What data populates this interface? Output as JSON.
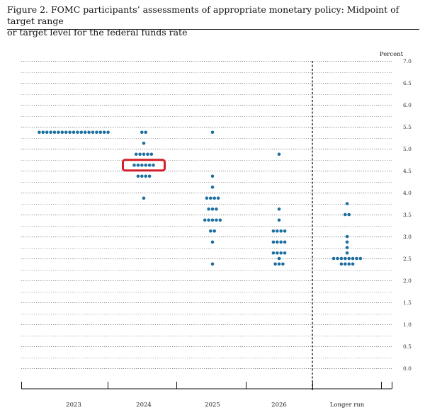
{
  "caption": {
    "line1": "Figure 2.  FOMC participants’ assessments of appropriate monetary policy:  Midpoint of target range",
    "line2": "or target level for the federal funds rate"
  },
  "colors": {
    "dot": "#1d6fa0",
    "highlight": "#d0202a"
  },
  "chart_data": {
    "type": "scatter",
    "ylabel": "Percent",
    "ylim": [
      0.0,
      7.0
    ],
    "yticks": [
      "0.0",
      "0.5",
      "1.0",
      "1.5",
      "2.0",
      "2.5",
      "3.0",
      "3.5",
      "4.0",
      "4.5",
      "5.0",
      "5.5",
      "6.0",
      "6.5",
      "7.0"
    ],
    "categories": [
      "2023",
      "2024",
      "2025",
      "2026",
      "Longer run"
    ],
    "dot_counts": [
      [
        [
          5.375,
          19
        ]
      ],
      [
        [
          5.375,
          2
        ],
        [
          5.125,
          1
        ],
        [
          4.875,
          5
        ],
        [
          4.625,
          6
        ],
        [
          4.375,
          4
        ],
        [
          3.875,
          1
        ]
      ],
      [
        [
          5.375,
          1
        ],
        [
          4.375,
          1
        ],
        [
          4.125,
          1
        ],
        [
          3.875,
          4
        ],
        [
          3.625,
          3
        ],
        [
          3.375,
          5
        ],
        [
          3.125,
          2
        ],
        [
          2.875,
          1
        ],
        [
          2.375,
          1
        ]
      ],
      [
        [
          4.875,
          1
        ],
        [
          3.625,
          1
        ],
        [
          3.375,
          1
        ],
        [
          3.125,
          4
        ],
        [
          2.875,
          4
        ],
        [
          2.625,
          4
        ],
        [
          2.5,
          1
        ],
        [
          2.375,
          3
        ]
      ],
      [
        [
          3.75,
          1
        ],
        [
          3.5,
          2
        ],
        [
          3.0,
          1
        ],
        [
          2.875,
          1
        ],
        [
          2.75,
          1
        ],
        [
          2.625,
          1
        ],
        [
          2.5,
          8
        ],
        [
          2.375,
          4
        ]
      ]
    ],
    "highlight": {
      "category": "2024",
      "value": 4.625
    },
    "grid": true,
    "separator_before": "Longer run"
  }
}
